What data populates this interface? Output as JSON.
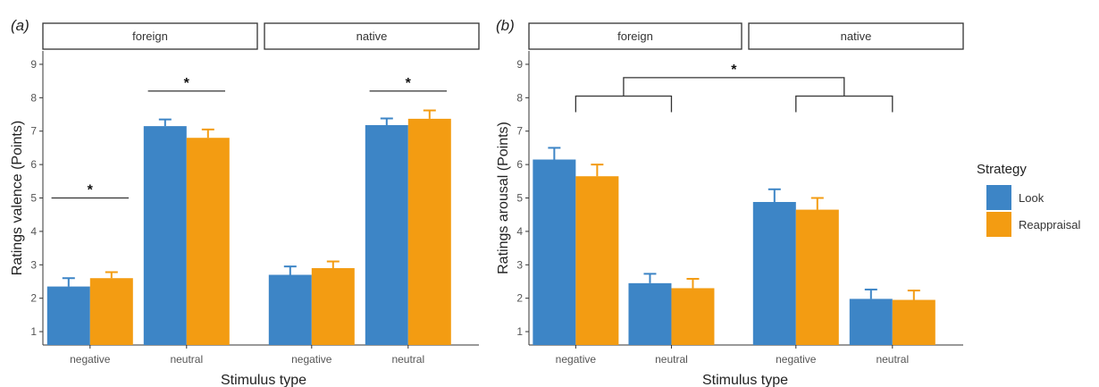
{
  "legend": {
    "title": "Strategy",
    "items": [
      {
        "label": "Look",
        "color": "#3d85c6"
      },
      {
        "label": "Reappraisal",
        "color": "#f39c12"
      }
    ]
  },
  "chart_data": [
    {
      "type": "bar",
      "panel_label": "(a)",
      "ylabel": "Ratings valence (Points)",
      "xlabel": "Stimulus type",
      "ylim": [
        0.6,
        9.4
      ],
      "yticks": [
        1,
        2,
        3,
        4,
        5,
        6,
        7,
        8,
        9
      ],
      "grid": false,
      "facets": [
        {
          "name": "foreign",
          "categories": [
            "negative",
            "neutral"
          ],
          "series": [
            {
              "name": "Look",
              "values": [
                2.35,
                7.15
              ],
              "errors": [
                0.25,
                0.2
              ]
            },
            {
              "name": "Reappraisal",
              "values": [
                2.6,
                6.8
              ],
              "errors": [
                0.18,
                0.25
              ]
            }
          ]
        },
        {
          "name": "native",
          "categories": [
            "negative",
            "neutral"
          ],
          "series": [
            {
              "name": "Look",
              "values": [
                2.7,
                7.18
              ],
              "errors": [
                0.25,
                0.2
              ]
            },
            {
              "name": "Reappraisal",
              "values": [
                2.9,
                7.37
              ],
              "errors": [
                0.2,
                0.25
              ]
            }
          ]
        }
      ],
      "annotations": [
        {
          "text": "*",
          "facet": 0,
          "category": 0,
          "y": 5.0
        },
        {
          "text": "*",
          "facet": 0,
          "category": 1,
          "y": 8.2
        },
        {
          "text": "*",
          "facet": 1,
          "category": 1,
          "y": 8.2
        }
      ]
    },
    {
      "type": "bar",
      "panel_label": "(b)",
      "ylabel": "Ratings arousal (Points)",
      "xlabel": "Stimulus type",
      "ylim": [
        0.6,
        9.4
      ],
      "yticks": [
        1,
        2,
        3,
        4,
        5,
        6,
        7,
        8,
        9
      ],
      "grid": false,
      "facets": [
        {
          "name": "foreign",
          "categories": [
            "negative",
            "neutral"
          ],
          "series": [
            {
              "name": "Look",
              "values": [
                6.15,
                2.45
              ],
              "errors": [
                0.35,
                0.28
              ]
            },
            {
              "name": "Reappraisal",
              "values": [
                5.65,
                2.3
              ],
              "errors": [
                0.35,
                0.28
              ]
            }
          ]
        },
        {
          "name": "native",
          "categories": [
            "negative",
            "neutral"
          ],
          "series": [
            {
              "name": "Look",
              "values": [
                4.88,
                1.98
              ],
              "errors": [
                0.38,
                0.28
              ]
            },
            {
              "name": "Reappraisal",
              "values": [
                4.65,
                1.95
              ],
              "errors": [
                0.35,
                0.28
              ]
            }
          ]
        }
      ],
      "annotations": [
        {
          "text": "*",
          "type": "nested-bracket",
          "y_inner": 8.05,
          "y_outer": 8.6
        }
      ]
    }
  ]
}
